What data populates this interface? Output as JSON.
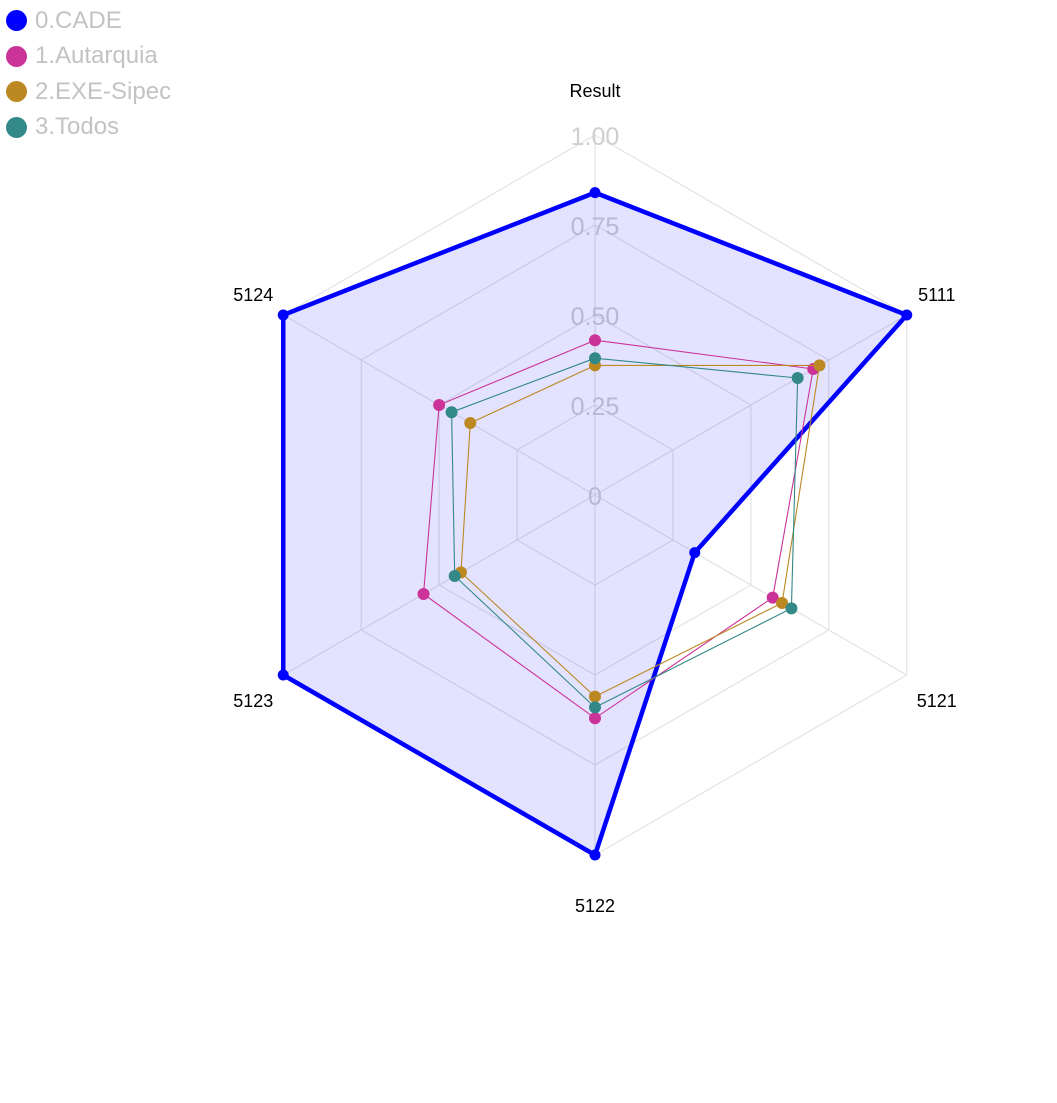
{
  "chart_data": {
    "type": "radar",
    "axes": [
      "Result",
      "5111",
      "5121",
      "5122",
      "5123",
      "5124"
    ],
    "radial_ticks": [
      "0",
      "0.25",
      "0.50",
      "0.75",
      "1.00"
    ],
    "radial_range": [
      0,
      1
    ],
    "grid": true,
    "legend_position": "top-left",
    "series": [
      {
        "name": "0.CADE",
        "color": "#0000ff",
        "values": [
          0.84,
          1.0,
          0.32,
          1.0,
          1.0,
          1.0
        ]
      },
      {
        "name": "1.Autarquia",
        "color": "#cc3399",
        "values": [
          0.43,
          0.7,
          0.57,
          0.62,
          0.55,
          0.5
        ]
      },
      {
        "name": "2.EXE-Sipec",
        "color": "#bb8822",
        "values": [
          0.36,
          0.72,
          0.6,
          0.56,
          0.43,
          0.4
        ]
      },
      {
        "name": "3.Todos",
        "color": "#338888",
        "values": [
          0.38,
          0.65,
          0.63,
          0.59,
          0.45,
          0.46
        ]
      }
    ]
  }
}
